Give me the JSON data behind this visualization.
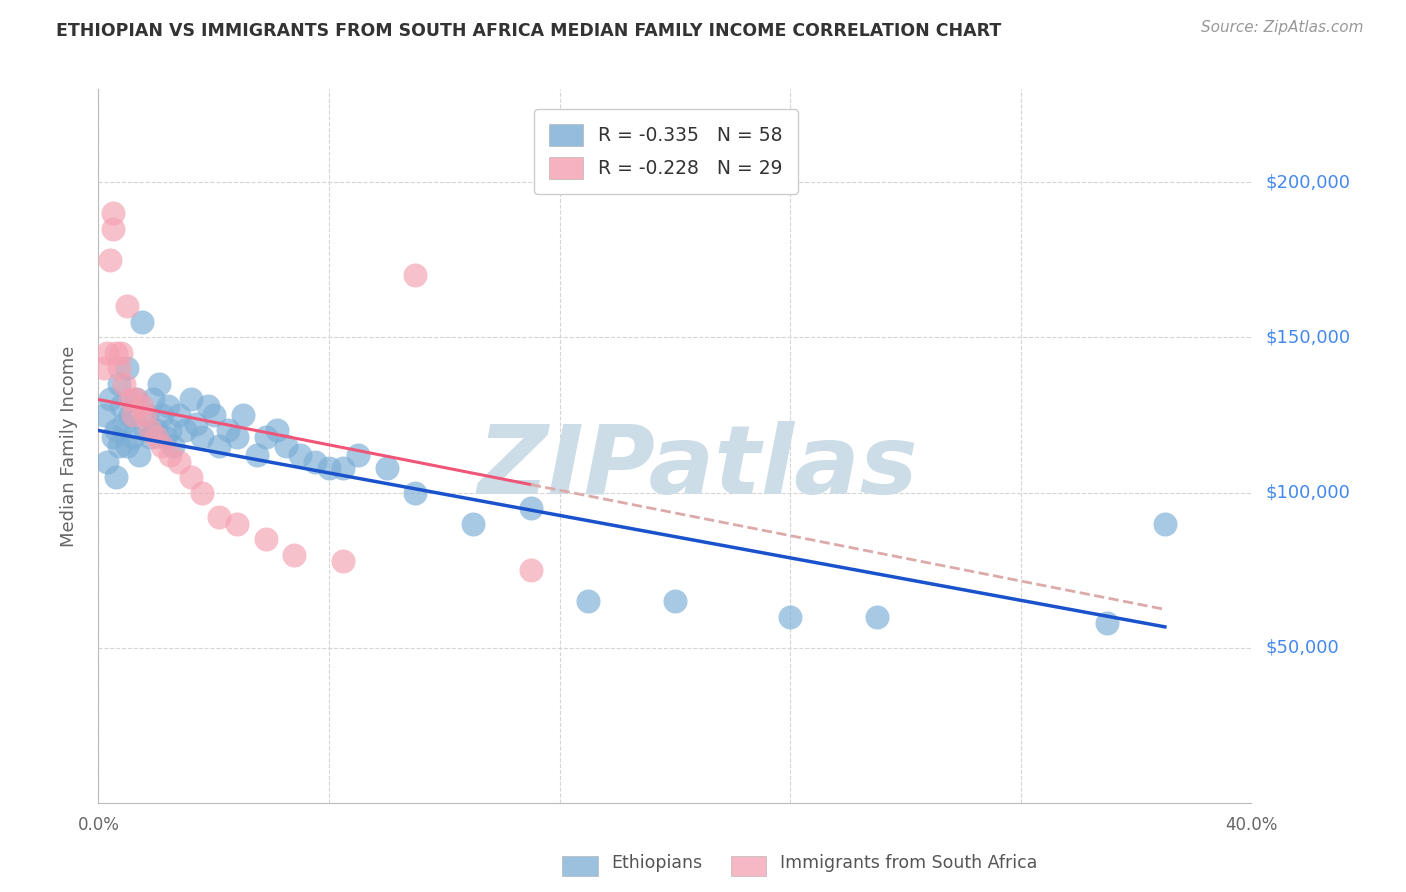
{
  "title": "ETHIOPIAN VS IMMIGRANTS FROM SOUTH AFRICA MEDIAN FAMILY INCOME CORRELATION CHART",
  "source": "Source: ZipAtlas.com",
  "ylabel": "Median Family Income",
  "xlim": [
    0.0,
    0.4
  ],
  "ylim": [
    0,
    230000
  ],
  "yticks": [
    0,
    50000,
    100000,
    150000,
    200000
  ],
  "ytick_labels": [
    "",
    "$50,000",
    "$100,000",
    "$150,000",
    "$200,000"
  ],
  "xticks": [
    0.0,
    0.08,
    0.16,
    0.24,
    0.32,
    0.4
  ],
  "xtick_labels": [
    "0.0%",
    "",
    "",
    "",
    "",
    "40.0%"
  ],
  "watermark": "ZIPatlas",
  "legend_label1": "Ethiopians",
  "legend_label2": "Immigrants from South Africa",
  "R1": -0.335,
  "N1": 58,
  "R2": -0.228,
  "N2": 29,
  "ethiopians_x": [
    0.002,
    0.003,
    0.004,
    0.005,
    0.006,
    0.006,
    0.007,
    0.007,
    0.008,
    0.009,
    0.01,
    0.01,
    0.011,
    0.012,
    0.013,
    0.014,
    0.015,
    0.016,
    0.017,
    0.018,
    0.019,
    0.02,
    0.021,
    0.022,
    0.023,
    0.024,
    0.025,
    0.026,
    0.028,
    0.03,
    0.032,
    0.034,
    0.036,
    0.038,
    0.04,
    0.042,
    0.045,
    0.048,
    0.05,
    0.055,
    0.058,
    0.062,
    0.065,
    0.07,
    0.075,
    0.08,
    0.085,
    0.09,
    0.1,
    0.11,
    0.13,
    0.15,
    0.17,
    0.2,
    0.24,
    0.27,
    0.35,
    0.37
  ],
  "ethiopians_y": [
    125000,
    110000,
    130000,
    118000,
    120000,
    105000,
    135000,
    115000,
    128000,
    122000,
    140000,
    115000,
    125000,
    118000,
    130000,
    112000,
    155000,
    120000,
    125000,
    118000,
    130000,
    120000,
    135000,
    125000,
    118000,
    128000,
    120000,
    115000,
    125000,
    120000,
    130000,
    122000,
    118000,
    128000,
    125000,
    115000,
    120000,
    118000,
    125000,
    112000,
    118000,
    120000,
    115000,
    112000,
    110000,
    108000,
    108000,
    112000,
    108000,
    100000,
    90000,
    95000,
    65000,
    65000,
    60000,
    60000,
    58000,
    90000
  ],
  "sa_x": [
    0.002,
    0.003,
    0.004,
    0.005,
    0.005,
    0.006,
    0.007,
    0.008,
    0.009,
    0.01,
    0.011,
    0.012,
    0.013,
    0.015,
    0.016,
    0.018,
    0.02,
    0.022,
    0.025,
    0.028,
    0.032,
    0.036,
    0.042,
    0.048,
    0.058,
    0.068,
    0.085,
    0.11,
    0.15
  ],
  "sa_y": [
    140000,
    145000,
    175000,
    185000,
    190000,
    145000,
    140000,
    145000,
    135000,
    160000,
    130000,
    125000,
    130000,
    128000,
    125000,
    120000,
    118000,
    115000,
    112000,
    110000,
    105000,
    100000,
    92000,
    90000,
    85000,
    80000,
    78000,
    170000,
    75000
  ],
  "blue_color": "#7aadd4",
  "pink_color": "#f4a0b0",
  "blue_line_color": "#1a52cc",
  "pink_line_color": "#ee5577",
  "pink_line_dash_color": "#ddaaaa",
  "grid_color": "#d5d5d5",
  "right_axis_color": "#4488ee",
  "watermark_color": "#ccdde8",
  "title_color": "#333333",
  "source_color": "#999999",
  "background_color": "#ffffff"
}
